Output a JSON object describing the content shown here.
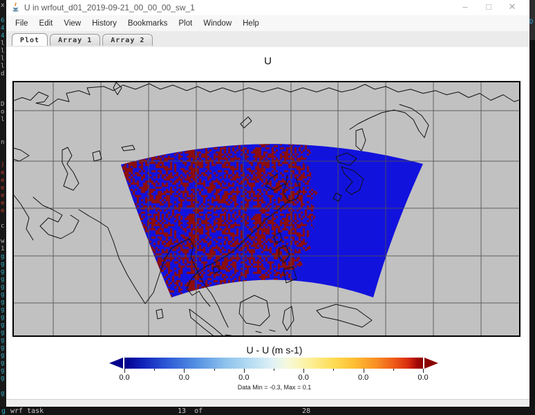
{
  "window": {
    "title": "U in wrfout_d01_2019-09-21_00_00_00_sw_1",
    "controls": {
      "minimize": "–",
      "maximize": "□",
      "close": "✕"
    }
  },
  "menubar": [
    "File",
    "Edit",
    "View",
    "History",
    "Bookmarks",
    "Plot",
    "Window",
    "Help"
  ],
  "tabs": [
    "Plot",
    "Array 1",
    "Array 2"
  ],
  "active_tab_index": 0,
  "plot": {
    "title": "U"
  },
  "colorbar": {
    "title": "U - U (m s-1)",
    "tick_labels": [
      "0.0",
      "0.0",
      "0.0",
      "0.0",
      "0.0",
      "0.0"
    ],
    "stats": "Data Min = -0.3, Max = 0.1"
  },
  "colors": {
    "domain_blue": "#1212dd",
    "speckle_red": "#8b0d0d",
    "map_background": "#c1c1c1",
    "grid_line": "#4f4f4f",
    "coastline": "#101010",
    "arrow_left": "#00008b",
    "arrow_right": "#8b0000"
  },
  "terminal": {
    "left_column": [
      "w:x",
      "",
      "c:6",
      "c:4",
      "c:4",
      "w:l",
      "w:l",
      "w:l",
      "w:l",
      "w:d",
      "",
      "",
      "",
      "w:D",
      "w:o",
      "w:l",
      "",
      "",
      "w:n",
      "",
      "",
      "r:)",
      "r:e",
      "r:e",
      "r:e",
      "r:e",
      "r:e",
      "r:e",
      "",
      "w:c",
      "",
      "w:w",
      "w:1",
      "c:g",
      "c:g",
      "c:g",
      "c:g",
      "c:g",
      "c:g",
      "c:g",
      "c:g",
      "c:g",
      "c:g",
      "c:g",
      "c:g",
      "c:g",
      "c:g",
      "c:g",
      "c:g",
      "c:g",
      "",
      "c:g"
    ],
    "bottom_segments": [
      "g",
      "wrf task",
      "13  of",
      "28"
    ],
    "right_glyph": "D"
  }
}
